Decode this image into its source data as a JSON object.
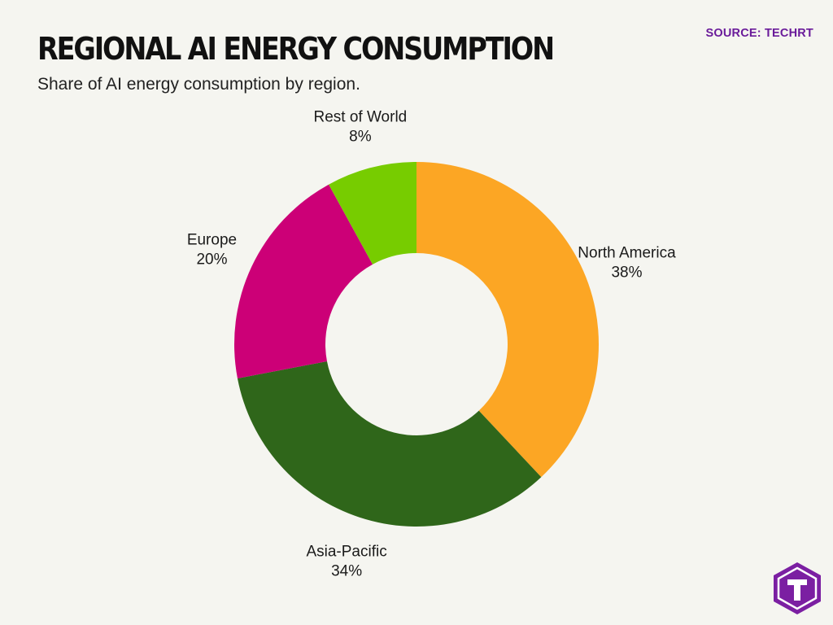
{
  "header": {
    "title": "REGIONAL AI ENERGY CONSUMPTION",
    "subtitle": "Share of AI energy consumption by region.",
    "source": "SOURCE: TECHRT"
  },
  "chart_data": {
    "type": "pie",
    "title": "REGIONAL AI ENERGY CONSUMPTION",
    "subtitle": "Share of AI energy consumption by region.",
    "donut": true,
    "categories": [
      "North America",
      "Asia-Pacific",
      "Europe",
      "Rest of World"
    ],
    "values": [
      38,
      34,
      20,
      8
    ],
    "value_labels": [
      "38%",
      "34%",
      "20%",
      "8%"
    ],
    "colors": [
      "#fca624",
      "#2f661a",
      "#cc0077",
      "#77cc00"
    ]
  },
  "logo": {
    "icon": "techrt-t-logo-icon",
    "background": "#7b1fa2"
  }
}
